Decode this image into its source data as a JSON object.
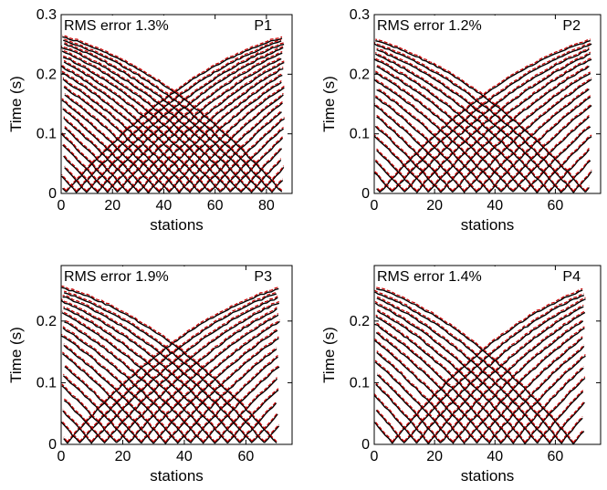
{
  "chart_data": [
    {
      "type": "line",
      "panel": "P1",
      "annotation": "RMS error 1.3%",
      "xlabel": "stations",
      "ylabel": "Time (s)",
      "xlim": [
        0,
        90
      ],
      "ylim": [
        0,
        0.3
      ],
      "xticks": [
        0,
        20,
        40,
        60,
        80
      ],
      "yticks": [
        0,
        0.1,
        0.2,
        0.3
      ],
      "ytick_labels": [
        "0",
        "0.1",
        "0.2",
        "0.3"
      ],
      "num_stations": 87,
      "shot_stations": [
        2,
        6,
        10,
        14,
        18,
        22,
        26,
        30,
        34,
        38,
        42,
        46,
        50,
        54,
        58,
        62,
        66,
        70,
        74,
        78,
        82,
        86
      ],
      "apparent_velocity_slope_s_per_station": 0.0049,
      "series": [
        {
          "role": "observed",
          "color": "#000000",
          "style": "solid"
        },
        {
          "role": "modeled",
          "color": "#cc0000",
          "style": "dashed"
        }
      ]
    },
    {
      "type": "line",
      "panel": "P2",
      "annotation": "RMS error 1.2%",
      "xlabel": "stations",
      "ylabel": "Time (s)",
      "xlim": [
        0,
        75
      ],
      "ylim": [
        0,
        0.3
      ],
      "xticks": [
        0,
        20,
        40,
        60
      ],
      "yticks": [
        0,
        0.1,
        0.2,
        0.3
      ],
      "ytick_labels": [
        "0",
        "0.1",
        "0.2",
        "0.3"
      ],
      "num_stations": 72,
      "shot_stations": [
        2,
        6,
        10,
        14,
        18,
        22,
        26,
        30,
        34,
        38,
        42,
        46,
        50,
        54,
        58,
        62,
        66,
        70
      ],
      "apparent_velocity_slope_s_per_station": 0.0058,
      "series": [
        {
          "role": "observed",
          "color": "#000000",
          "style": "solid"
        },
        {
          "role": "modeled",
          "color": "#cc0000",
          "style": "dashed"
        }
      ]
    },
    {
      "type": "line",
      "panel": "P3",
      "annotation": "RMS error 1.9%",
      "xlabel": "stations",
      "ylabel": "Time (s)",
      "xlim": [
        0,
        75
      ],
      "ylim": [
        0,
        0.29
      ],
      "xticks": [
        0,
        20,
        40,
        60
      ],
      "yticks": [
        0,
        0.1,
        0.2
      ],
      "ytick_labels": [
        "0",
        "0.1",
        "0.2"
      ],
      "num_stations": 71,
      "shot_stations": [
        2,
        6,
        10,
        14,
        18,
        22,
        26,
        30,
        34,
        38,
        42,
        46,
        50,
        54,
        58,
        62,
        66,
        70
      ],
      "apparent_velocity_slope_s_per_station": 0.0058,
      "series": [
        {
          "role": "observed",
          "color": "#000000",
          "style": "solid"
        },
        {
          "role": "modeled",
          "color": "#cc0000",
          "style": "dashed"
        }
      ]
    },
    {
      "type": "line",
      "panel": "P4",
      "annotation": "RMS error 1.4%",
      "xlabel": "stations",
      "ylabel": "Time (s)",
      "xlim": [
        0,
        75
      ],
      "ylim": [
        0,
        0.29
      ],
      "xticks": [
        0,
        20,
        40,
        60
      ],
      "yticks": [
        0,
        0.1,
        0.2
      ],
      "ytick_labels": [
        "0",
        "0.1",
        "0.2"
      ],
      "num_stations": 70,
      "shot_stations": [
        6,
        10,
        14,
        18,
        22,
        26,
        30,
        34,
        38,
        42,
        46,
        50,
        54,
        58,
        62,
        66
      ],
      "apparent_velocity_slope_s_per_station": 0.006,
      "series": [
        {
          "role": "observed",
          "color": "#000000",
          "style": "solid"
        },
        {
          "role": "modeled",
          "color": "#cc0000",
          "style": "dashed"
        }
      ]
    }
  ]
}
